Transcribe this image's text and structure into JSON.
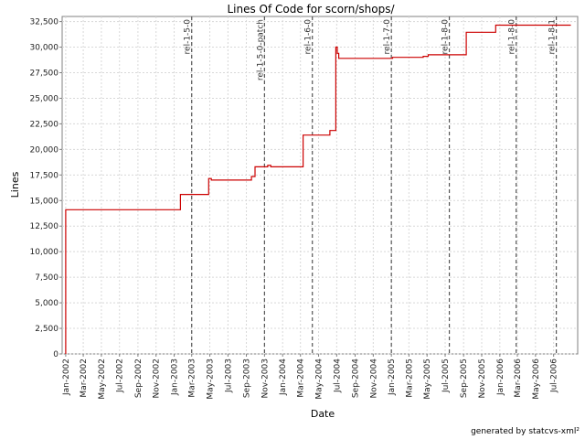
{
  "chart_data": {
    "type": "line",
    "title": "Lines Of Code for scorn/shops/",
    "xlabel": "Date",
    "ylabel": "Lines",
    "ylim": [
      0,
      33000
    ],
    "y_ticks": [
      0,
      2500,
      5000,
      7500,
      10000,
      12500,
      15000,
      17500,
      20000,
      22500,
      25000,
      27500,
      30000,
      32500
    ],
    "y_tick_labels": [
      "0",
      "2,500",
      "5,000",
      "7,500",
      "10,000",
      "12,500",
      "15,000",
      "17,500",
      "20,000",
      "22,500",
      "25,000",
      "27,500",
      "30,000",
      "32,500"
    ],
    "x_range": [
      "2001-12-20",
      "2006-09-20"
    ],
    "x_ticks": [
      "2002-01-01",
      "2002-03-01",
      "2002-05-01",
      "2002-07-01",
      "2002-09-01",
      "2002-11-01",
      "2003-01-01",
      "2003-03-01",
      "2003-05-01",
      "2003-07-01",
      "2003-09-01",
      "2003-11-01",
      "2004-01-01",
      "2004-03-01",
      "2004-05-01",
      "2004-07-01",
      "2004-09-01",
      "2004-11-01",
      "2005-01-01",
      "2005-03-01",
      "2005-05-01",
      "2005-07-01",
      "2005-09-01",
      "2005-11-01",
      "2006-01-01",
      "2006-03-01",
      "2006-05-01",
      "2006-07-01"
    ],
    "x_tick_labels": [
      "Jan-2002",
      "Mar-2002",
      "May-2002",
      "Jul-2002",
      "Sep-2002",
      "Nov-2002",
      "Jan-2003",
      "Mar-2003",
      "May-2003",
      "Jul-2003",
      "Sep-2003",
      "Nov-2003",
      "Jan-2004",
      "Mar-2004",
      "May-2004",
      "Jul-2004",
      "Sep-2004",
      "Nov-2004",
      "Jan-2005",
      "Mar-2005",
      "May-2005",
      "Jul-2005",
      "Sep-2005",
      "Nov-2005",
      "Jan-2006",
      "Mar-2006",
      "May-2006",
      "Jul-2006"
    ],
    "grid": true,
    "series": [
      {
        "color": "#cc0000",
        "step": true,
        "points": [
          [
            "2002-01-01",
            0
          ],
          [
            "2002-01-01",
            14100
          ],
          [
            "2003-01-22",
            15600
          ],
          [
            "2003-04-27",
            17150
          ],
          [
            "2003-05-06",
            17000
          ],
          [
            "2003-09-18",
            17350
          ],
          [
            "2003-09-30",
            18300
          ],
          [
            "2003-11-12",
            18450
          ],
          [
            "2003-11-22",
            18300
          ],
          [
            "2004-03-10",
            21400
          ],
          [
            "2004-06-08",
            21850
          ],
          [
            "2004-06-28",
            30000
          ],
          [
            "2004-07-03",
            29400
          ],
          [
            "2004-07-08",
            28900
          ],
          [
            "2005-01-05",
            29000
          ],
          [
            "2005-04-18",
            29100
          ],
          [
            "2005-05-05",
            29250
          ],
          [
            "2005-09-10",
            31450
          ],
          [
            "2005-12-18",
            32150
          ],
          [
            "2006-08-28",
            32150
          ]
        ]
      }
    ],
    "markers": [
      {
        "label": "rel-1-5-0",
        "date": "2003-03-01"
      },
      {
        "label": "rel-1-5-0-patch",
        "date": "2003-11-01"
      },
      {
        "label": "rel-1-6-0",
        "date": "2004-04-10"
      },
      {
        "label": "rel-1-7-0",
        "date": "2005-01-01"
      },
      {
        "label": "rel-1-8-0",
        "date": "2005-07-15"
      },
      {
        "label": "rel-1-8-0",
        "date": "2006-02-25"
      },
      {
        "label": "rel-1-8-1",
        "date": "2006-07-10"
      }
    ],
    "footer": "generated by statcvs-xml²"
  }
}
